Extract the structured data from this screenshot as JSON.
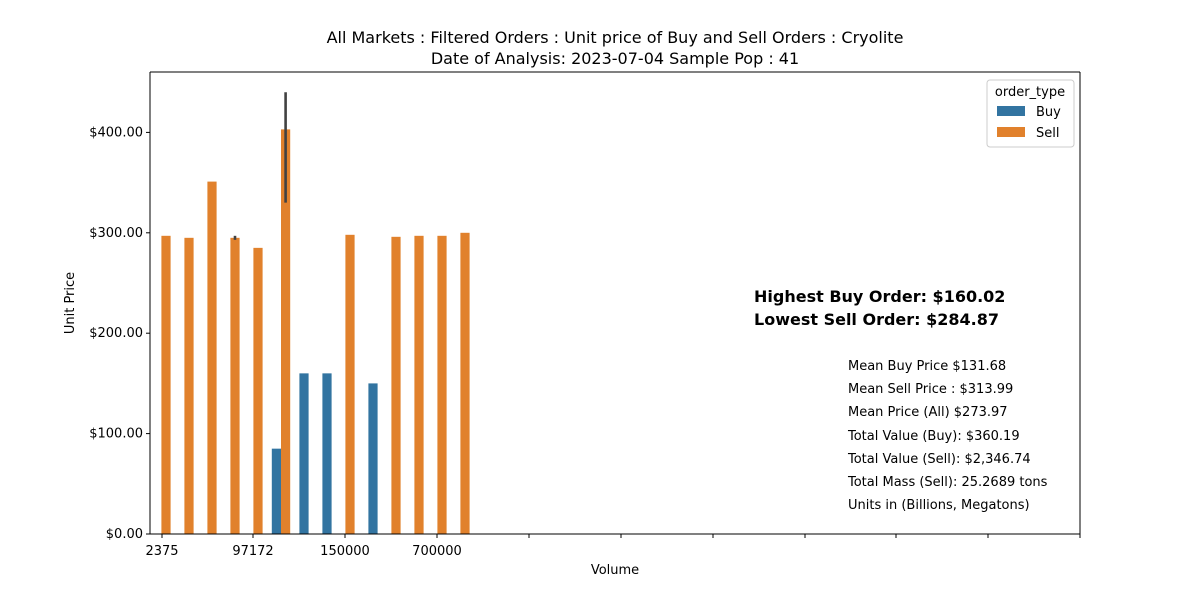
{
  "chart_data": {
    "type": "bar",
    "title": "All Markets : Filtered Orders : Unit price of Buy and Sell Orders : Cryolite",
    "subtitle": "Date of Analysis: 2023-07-04 Sample Pop : 41",
    "xlabel": "Volume",
    "ylabel": "Unit Price",
    "ylim": [
      0,
      460
    ],
    "yticks": [
      "$0.00",
      "$100.00",
      "$200.00",
      "$300.00",
      "$400.00"
    ],
    "ytick_values": [
      0,
      100,
      200,
      300,
      400
    ],
    "xtick_labels": [
      "2375",
      "97172",
      "150000",
      "700000"
    ],
    "legend": {
      "title": "order_type",
      "placement": "top-right"
    },
    "series": [
      {
        "name": "Buy",
        "color": "#3274a1",
        "values": [
          null,
          null,
          null,
          null,
          null,
          85,
          160,
          160,
          null,
          150,
          null,
          null,
          null,
          null
        ]
      },
      {
        "name": "Sell",
        "color": "#e1812c",
        "values": [
          297,
          295,
          351,
          295,
          285,
          403,
          null,
          null,
          298,
          null,
          296,
          297,
          297,
          300
        ]
      }
    ],
    "error_bars": [
      {
        "series": "Sell",
        "category_index": 3,
        "low": 293,
        "high": 297
      },
      {
        "series": "Sell",
        "category_index": 5,
        "low": 330,
        "high": 440
      }
    ],
    "category_count": 14,
    "highlights": [
      "Highest Buy Order: $160.02",
      "Lowest Sell Order: $284.87"
    ],
    "stats": [
      "Mean Buy Price $131.68",
      "Mean Sell Price : $313.99",
      "Mean Price (All) $273.97",
      "Total Value (Buy): $360.19",
      "Total Value (Sell): $2,346.74",
      "Total Mass (Sell): 25.2689 tons",
      "Units in (Billions, Megatons)"
    ]
  }
}
